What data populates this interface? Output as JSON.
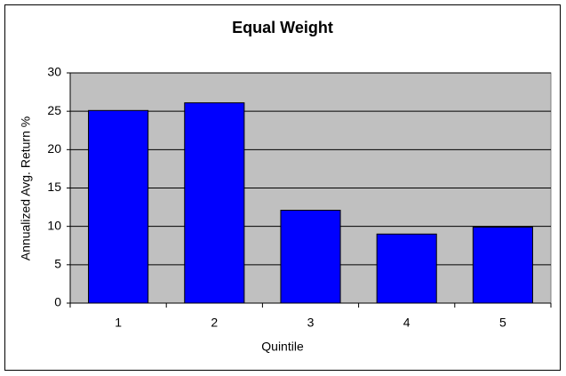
{
  "chart_data": {
    "type": "bar",
    "title": "Equal Weight",
    "x_label": "Quintile",
    "y_label": "Annualized Avg. Return %",
    "categories": [
      "1",
      "2",
      "3",
      "4",
      "5"
    ],
    "values": [
      25.1,
      26.1,
      12.1,
      9.0,
      9.9
    ],
    "color": "#0000ff",
    "plot_background": "#c0c0c0",
    "ylim": [
      0,
      30
    ],
    "yticks": [
      0,
      5,
      10,
      15,
      20,
      25,
      30
    ],
    "grid": true
  }
}
